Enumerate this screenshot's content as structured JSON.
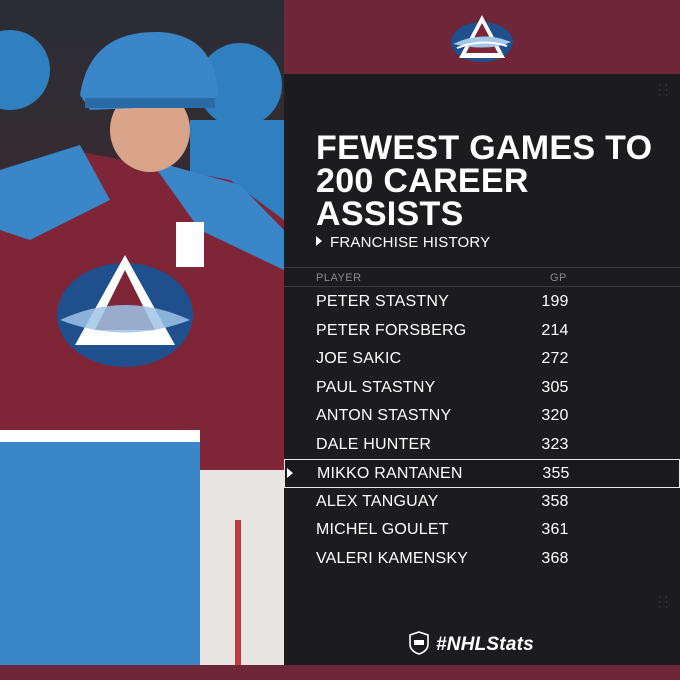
{
  "header": {
    "title": "FEWEST GAMES TO 200 CAREER ASSISTS",
    "subtitle": "FRANCHISE HISTORY"
  },
  "table": {
    "columns": [
      "PLAYER",
      "GP"
    ],
    "rows": [
      {
        "player": "PETER STASTNY",
        "gp": "199"
      },
      {
        "player": "PETER FORSBERG",
        "gp": "214"
      },
      {
        "player": "JOE SAKIC",
        "gp": "272"
      },
      {
        "player": "PAUL STASTNY",
        "gp": "305"
      },
      {
        "player": "ANTON STASTNY",
        "gp": "320"
      },
      {
        "player": "DALE HUNTER",
        "gp": "323"
      },
      {
        "player": "MIKKO RANTANEN",
        "gp": "355",
        "highlighted": true
      },
      {
        "player": "ALEX TANGUAY",
        "gp": "358"
      },
      {
        "player": "MICHEL GOULET",
        "gp": "361"
      },
      {
        "player": "VALERI KAMENSKY",
        "gp": "368"
      }
    ]
  },
  "footer": {
    "hashtag": "#NHLStats"
  },
  "colors": {
    "maroon": "#6f2638",
    "panel": "#1c1c1e",
    "blue": "#2f7fc1",
    "text": "#ffffff"
  },
  "icons": [
    "avalanche-logo-icon",
    "nhl-shield-icon"
  ]
}
